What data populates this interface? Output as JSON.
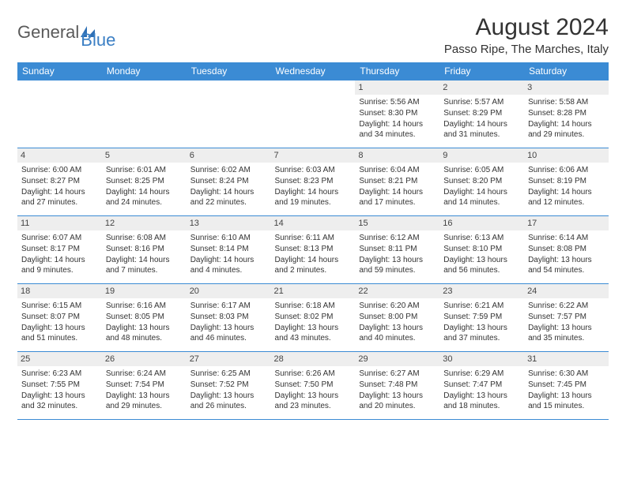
{
  "logo": {
    "word1": "General",
    "word2": "Blue"
  },
  "title": "August 2024",
  "subtitle": "Passo Ripe, The Marches, Italy",
  "colors": {
    "header_bg": "#3b8bd4",
    "header_text": "#ffffff",
    "daynum_bg": "#eeeeee",
    "border": "#3b8bd4",
    "logo_gray": "#5a5a5a",
    "logo_blue": "#3b7fc4"
  },
  "weekdays": [
    "Sunday",
    "Monday",
    "Tuesday",
    "Wednesday",
    "Thursday",
    "Friday",
    "Saturday"
  ],
  "weeks": [
    [
      null,
      null,
      null,
      null,
      {
        "n": "1",
        "sr": "Sunrise: 5:56 AM",
        "ss": "Sunset: 8:30 PM",
        "dl": "Daylight: 14 hours and 34 minutes."
      },
      {
        "n": "2",
        "sr": "Sunrise: 5:57 AM",
        "ss": "Sunset: 8:29 PM",
        "dl": "Daylight: 14 hours and 31 minutes."
      },
      {
        "n": "3",
        "sr": "Sunrise: 5:58 AM",
        "ss": "Sunset: 8:28 PM",
        "dl": "Daylight: 14 hours and 29 minutes."
      }
    ],
    [
      {
        "n": "4",
        "sr": "Sunrise: 6:00 AM",
        "ss": "Sunset: 8:27 PM",
        "dl": "Daylight: 14 hours and 27 minutes."
      },
      {
        "n": "5",
        "sr": "Sunrise: 6:01 AM",
        "ss": "Sunset: 8:25 PM",
        "dl": "Daylight: 14 hours and 24 minutes."
      },
      {
        "n": "6",
        "sr": "Sunrise: 6:02 AM",
        "ss": "Sunset: 8:24 PM",
        "dl": "Daylight: 14 hours and 22 minutes."
      },
      {
        "n": "7",
        "sr": "Sunrise: 6:03 AM",
        "ss": "Sunset: 8:23 PM",
        "dl": "Daylight: 14 hours and 19 minutes."
      },
      {
        "n": "8",
        "sr": "Sunrise: 6:04 AM",
        "ss": "Sunset: 8:21 PM",
        "dl": "Daylight: 14 hours and 17 minutes."
      },
      {
        "n": "9",
        "sr": "Sunrise: 6:05 AM",
        "ss": "Sunset: 8:20 PM",
        "dl": "Daylight: 14 hours and 14 minutes."
      },
      {
        "n": "10",
        "sr": "Sunrise: 6:06 AM",
        "ss": "Sunset: 8:19 PM",
        "dl": "Daylight: 14 hours and 12 minutes."
      }
    ],
    [
      {
        "n": "11",
        "sr": "Sunrise: 6:07 AM",
        "ss": "Sunset: 8:17 PM",
        "dl": "Daylight: 14 hours and 9 minutes."
      },
      {
        "n": "12",
        "sr": "Sunrise: 6:08 AM",
        "ss": "Sunset: 8:16 PM",
        "dl": "Daylight: 14 hours and 7 minutes."
      },
      {
        "n": "13",
        "sr": "Sunrise: 6:10 AM",
        "ss": "Sunset: 8:14 PM",
        "dl": "Daylight: 14 hours and 4 minutes."
      },
      {
        "n": "14",
        "sr": "Sunrise: 6:11 AM",
        "ss": "Sunset: 8:13 PM",
        "dl": "Daylight: 14 hours and 2 minutes."
      },
      {
        "n": "15",
        "sr": "Sunrise: 6:12 AM",
        "ss": "Sunset: 8:11 PM",
        "dl": "Daylight: 13 hours and 59 minutes."
      },
      {
        "n": "16",
        "sr": "Sunrise: 6:13 AM",
        "ss": "Sunset: 8:10 PM",
        "dl": "Daylight: 13 hours and 56 minutes."
      },
      {
        "n": "17",
        "sr": "Sunrise: 6:14 AM",
        "ss": "Sunset: 8:08 PM",
        "dl": "Daylight: 13 hours and 54 minutes."
      }
    ],
    [
      {
        "n": "18",
        "sr": "Sunrise: 6:15 AM",
        "ss": "Sunset: 8:07 PM",
        "dl": "Daylight: 13 hours and 51 minutes."
      },
      {
        "n": "19",
        "sr": "Sunrise: 6:16 AM",
        "ss": "Sunset: 8:05 PM",
        "dl": "Daylight: 13 hours and 48 minutes."
      },
      {
        "n": "20",
        "sr": "Sunrise: 6:17 AM",
        "ss": "Sunset: 8:03 PM",
        "dl": "Daylight: 13 hours and 46 minutes."
      },
      {
        "n": "21",
        "sr": "Sunrise: 6:18 AM",
        "ss": "Sunset: 8:02 PM",
        "dl": "Daylight: 13 hours and 43 minutes."
      },
      {
        "n": "22",
        "sr": "Sunrise: 6:20 AM",
        "ss": "Sunset: 8:00 PM",
        "dl": "Daylight: 13 hours and 40 minutes."
      },
      {
        "n": "23",
        "sr": "Sunrise: 6:21 AM",
        "ss": "Sunset: 7:59 PM",
        "dl": "Daylight: 13 hours and 37 minutes."
      },
      {
        "n": "24",
        "sr": "Sunrise: 6:22 AM",
        "ss": "Sunset: 7:57 PM",
        "dl": "Daylight: 13 hours and 35 minutes."
      }
    ],
    [
      {
        "n": "25",
        "sr": "Sunrise: 6:23 AM",
        "ss": "Sunset: 7:55 PM",
        "dl": "Daylight: 13 hours and 32 minutes."
      },
      {
        "n": "26",
        "sr": "Sunrise: 6:24 AM",
        "ss": "Sunset: 7:54 PM",
        "dl": "Daylight: 13 hours and 29 minutes."
      },
      {
        "n": "27",
        "sr": "Sunrise: 6:25 AM",
        "ss": "Sunset: 7:52 PM",
        "dl": "Daylight: 13 hours and 26 minutes."
      },
      {
        "n": "28",
        "sr": "Sunrise: 6:26 AM",
        "ss": "Sunset: 7:50 PM",
        "dl": "Daylight: 13 hours and 23 minutes."
      },
      {
        "n": "29",
        "sr": "Sunrise: 6:27 AM",
        "ss": "Sunset: 7:48 PM",
        "dl": "Daylight: 13 hours and 20 minutes."
      },
      {
        "n": "30",
        "sr": "Sunrise: 6:29 AM",
        "ss": "Sunset: 7:47 PM",
        "dl": "Daylight: 13 hours and 18 minutes."
      },
      {
        "n": "31",
        "sr": "Sunrise: 6:30 AM",
        "ss": "Sunset: 7:45 PM",
        "dl": "Daylight: 13 hours and 15 minutes."
      }
    ]
  ]
}
